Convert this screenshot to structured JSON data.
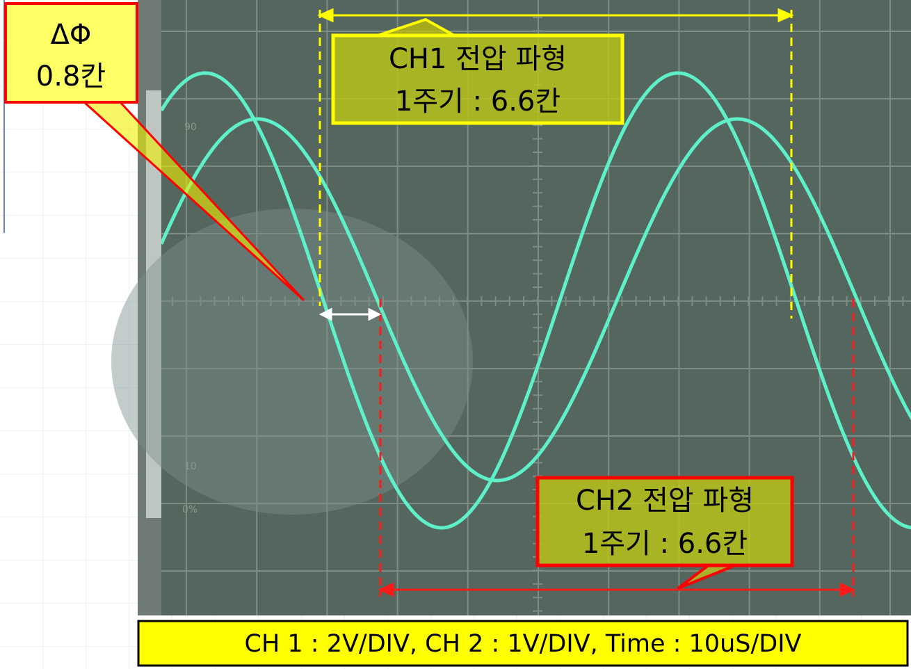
{
  "annotations": {
    "phase": {
      "symbol": "ΔΦ",
      "value": "0.8칸"
    },
    "ch1": {
      "title": "CH1 전압 파형",
      "period": "1주기 : 6.6칸"
    },
    "ch2": {
      "title": "CH2 전압 파형",
      "period": "1주기 : 6.6칸"
    }
  },
  "scope": {
    "labels": [
      "90",
      "10",
      "0%"
    ]
  },
  "footer": "CH 1 : 2V/DIV, CH 2 : 1V/DIV, Time : 10uS/DIV"
}
